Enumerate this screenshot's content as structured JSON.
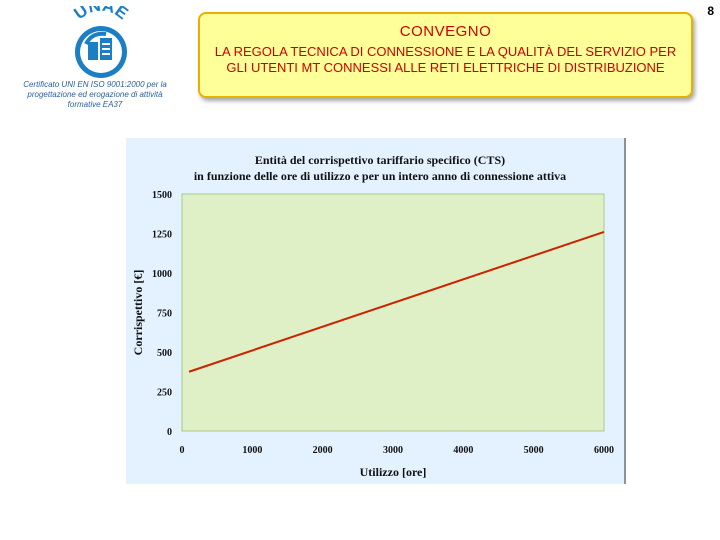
{
  "page_number": "8",
  "logo": {
    "text": "UNAE",
    "color": "#1c7fc4"
  },
  "certification": "Certificato UNI EN ISO 9001:2000 per la progettazione ed erogazione di attività formative EA37",
  "banner": {
    "title": "CONVEGNO",
    "subtitle": "LA REGOLA TECNICA DI CONNESSIONE E LA QUALITÀ DEL SERVIZIO PER GLI UTENTI MT CONNESSI ALLE RETI ELETTRICHE DI DISTRIBUZIONE",
    "background": "#ffff99",
    "text_color": "#cc0000"
  },
  "chart_data": {
    "type": "line",
    "title": "Entità del corrispettivo tariffario specifico (CTS) in funzione delle ore di utilizzo e per un intero anno di connessione attiva",
    "title_lines": [
      "Entità del corrispettivo tariffario specifico (CTS)",
      "in funzione delle ore di utilizzo e per un intero anno di connessione attiva"
    ],
    "xlabel": "Utilizzo [ore]",
    "ylabel": "Corrispettivo [€]",
    "xlim": [
      0,
      6000
    ],
    "ylim": [
      0,
      1500
    ],
    "xticks": [
      0,
      1000,
      2000,
      3000,
      4000,
      5000,
      6000
    ],
    "yticks": [
      0,
      250,
      500,
      750,
      1000,
      1250,
      1500
    ],
    "grid": false,
    "series": [
      {
        "x": [
          100,
          6000
        ],
        "y": [
          375,
          1260
        ],
        "color": "#cc2200"
      }
    ],
    "colors": {
      "chart_background": "#e4f2ff",
      "plot_background": "#dff0c6",
      "plot_border": "#a7c98a"
    }
  }
}
